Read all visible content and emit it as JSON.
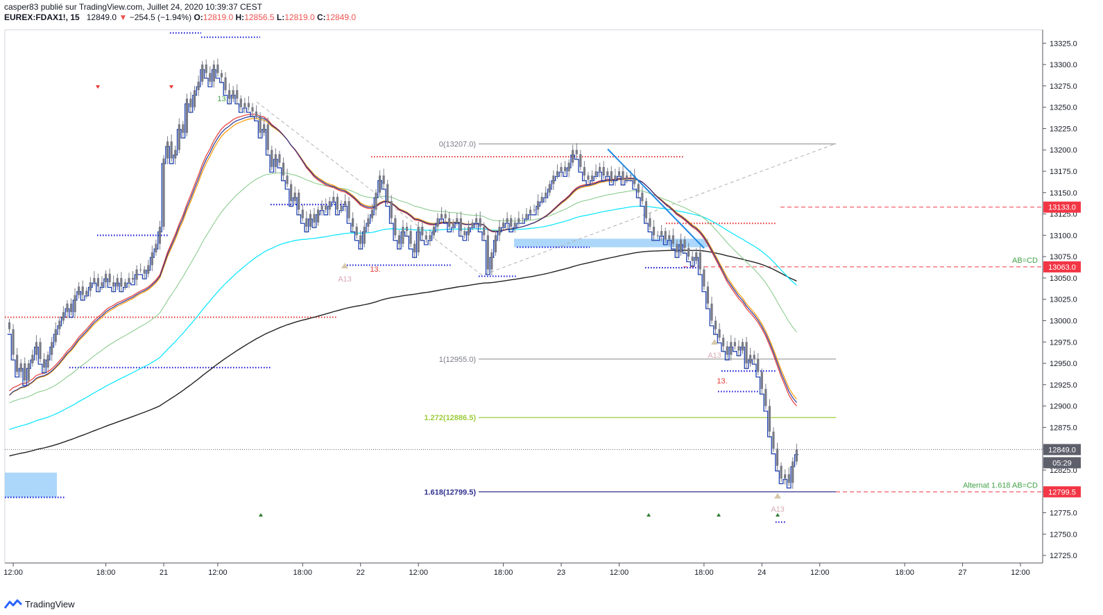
{
  "header": {
    "line1": "casper83 publié sur TradingView.com, Juillet 24, 2020 10:39:37 CEST",
    "symbol": "EUREX:FDAX1!, 15",
    "last": "12849.0",
    "arrow": "▼",
    "change": "−254.5 (−1.94%)",
    "o_label": "O:",
    "o_value": "12819.0",
    "h_label": "H:",
    "h_value": "12856.5",
    "l_label": "L:",
    "l_value": "12819.0",
    "c_label": "C:",
    "c_value": "12849.0"
  },
  "footer": {
    "brand": "TradingView"
  },
  "colors": {
    "candle": "#787b86",
    "ema_red": "#e53935",
    "ema_orange": "#ff9800",
    "ema_blue": "#283593",
    "ema_green": "#81c784",
    "ema_cyan": "#00e5ff",
    "ema_black": "#212121",
    "step_blue": "#1e40af",
    "dot_red": "#e53935",
    "dot_blue": "#1a1ad8",
    "fib_gray": "#888888",
    "fib_green": "#9ccc3c",
    "fib_navy": "#303090",
    "trend_blue": "#1e88e5",
    "zone_blue": "#90caf9",
    "price_tag_red": "#f23645",
    "price_tag_gray": "#5d606b"
  },
  "chart_data": {
    "type": "candlestick",
    "title": "EUREX:FDAX1!, 15",
    "ylim": [
      12715,
      13340
    ],
    "y_ticks": [
      12725,
      12750,
      12775,
      12800,
      12825,
      12850,
      12875,
      12900,
      12925,
      12950,
      12975,
      13000,
      13025,
      13050,
      13075,
      13100,
      13125,
      13150,
      13175,
      13200,
      13225,
      13250,
      13275,
      13300,
      13325
    ],
    "x_ticks": [
      {
        "i": 1,
        "label": "12:00"
      },
      {
        "i": 25,
        "label": "18:00"
      },
      {
        "i": 40,
        "label": "21"
      },
      {
        "i": 54,
        "label": "12:00"
      },
      {
        "i": 76,
        "label": "18:00"
      },
      {
        "i": 91,
        "label": "22"
      },
      {
        "i": 106,
        "label": "12:00"
      },
      {
        "i": 128,
        "label": "18:00"
      },
      {
        "i": 143,
        "label": "23"
      },
      {
        "i": 158,
        "label": "12:00"
      },
      {
        "i": 180,
        "label": "18:00"
      },
      {
        "i": 195,
        "label": "24"
      },
      {
        "i": 210,
        "label": "12:00"
      },
      {
        "i": 232,
        "label": "18:00"
      },
      {
        "i": 247,
        "label": "27"
      },
      {
        "i": 262,
        "label": "12:00"
      }
    ],
    "close": [
      12990,
      12960,
      12940,
      12950,
      12930,
      12950,
      12960,
      12975,
      12955,
      12945,
      12960,
      12975,
      12990,
      13000,
      13010,
      13020,
      13010,
      13030,
      13040,
      13030,
      13035,
      13045,
      13050,
      13040,
      13045,
      13055,
      13045,
      13040,
      13050,
      13040,
      13045,
      13050,
      13048,
      13060,
      13060,
      13055,
      13065,
      13080,
      13090,
      13110,
      13190,
      13210,
      13190,
      13200,
      13230,
      13220,
      13260,
      13250,
      13270,
      13280,
      13300,
      13290,
      13280,
      13300,
      13290,
      13285,
      13270,
      13260,
      13270,
      13260,
      13250,
      13255,
      13250,
      13245,
      13240,
      13220,
      13230,
      13200,
      13180,
      13195,
      13185,
      13170,
      13160,
      13140,
      13150,
      13130,
      13120,
      13110,
      13125,
      13115,
      13130,
      13135,
      13130,
      13140,
      13145,
      13130,
      13135,
      13140,
      13120,
      13110,
      13100,
      13090,
      13110,
      13120,
      13130,
      13150,
      13170,
      13160,
      13140,
      13120,
      13100,
      13090,
      13110,
      13105,
      13090,
      13080,
      13110,
      13100,
      13095,
      13100,
      13110,
      13120,
      13125,
      13120,
      13110,
      13115,
      13120,
      13105,
      13100,
      13110,
      13115,
      13120,
      13110,
      13100,
      13060,
      13080,
      13100,
      13110,
      13115,
      13120,
      13110,
      13115,
      13120,
      13120,
      13125,
      13130,
      13130,
      13140,
      13145,
      13150,
      13160,
      13170,
      13175,
      13180,
      13175,
      13185,
      13200,
      13195,
      13180,
      13170,
      13165,
      13170,
      13175,
      13180,
      13170,
      13175,
      13165,
      13170,
      13175,
      13165,
      13170,
      13170,
      13160,
      13150,
      13140,
      13120,
      13110,
      13100,
      13100,
      13105,
      13095,
      13100,
      13090,
      13080,
      13095,
      13085,
      13075,
      13070,
      13080,
      13060,
      13040,
      13020,
      13000,
      12990,
      12980,
      12970,
      12960,
      12975,
      12970,
      12965,
      12975,
      12950,
      12960,
      12955,
      12940,
      12920,
      12900,
      12870,
      12850,
      12830,
      12815,
      12820,
      12810,
      12835,
      12849
    ]
  },
  "annotations": {
    "price_tags": [
      "13133.0",
      "13063.0",
      "12849.0",
      "05:29",
      "12799.5"
    ],
    "fib_labels": [
      "0(13207.0)",
      "1(12955.0)",
      "1.272(12886.5)",
      "1.618(12799.5)"
    ],
    "abcd_label": "AB=CD",
    "alt_abcd_label": "Alternat 1.618 AB=CD",
    "marker_a13": "A13",
    "marker_13": "13."
  }
}
